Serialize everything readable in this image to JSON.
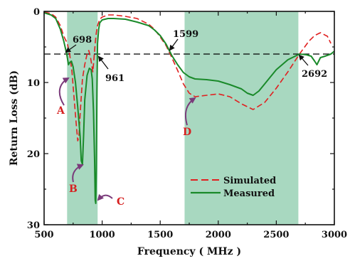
{
  "chart_data": {
    "type": "line",
    "xlabel": "Frequency ( MHz )",
    "ylabel": "Return Loss (dB)",
    "xlim": [
      500,
      3000
    ],
    "ylim": [
      0,
      30
    ],
    "y_inverted": true,
    "x_ticks": [
      500,
      1000,
      1500,
      2000,
      2500,
      3000
    ],
    "y_ticks": [
      0,
      10,
      20,
      30
    ],
    "grid": false,
    "legend_position": "lower-right",
    "reference_line": {
      "y": 6,
      "style": "dashed",
      "color": "#000000"
    },
    "bands": [
      {
        "from": 698,
        "to": 961,
        "color": "#a8d8c0"
      },
      {
        "from": 1710,
        "to": 2690,
        "color": "#a8d8c0"
      }
    ],
    "series": [
      {
        "name": "Simulated",
        "style": "dashed",
        "color": "#e02020",
        "x": [
          500,
          560,
          600,
          640,
          670,
          700,
          720,
          740,
          760,
          780,
          790,
          800,
          810,
          830,
          850,
          870,
          885,
          900,
          910,
          920,
          930,
          940,
          950,
          960,
          980,
          1000,
          1050,
          1100,
          1200,
          1300,
          1400,
          1450,
          1500,
          1550,
          1600,
          1650,
          1700,
          1750,
          1800,
          1900,
          2000,
          2100,
          2200,
          2300,
          2400,
          2500,
          2600,
          2700,
          2780,
          2830,
          2880,
          2940,
          2970
        ],
        "y": [
          0.1,
          0.3,
          0.8,
          2.0,
          3.5,
          4.5,
          6.0,
          8.5,
          12.5,
          16.5,
          18.2,
          17.5,
          14.5,
          9.5,
          7.5,
          6.0,
          5.5,
          6.5,
          7.5,
          8.5,
          6.5,
          4.5,
          3.0,
          2.0,
          1.1,
          0.8,
          0.5,
          0.5,
          0.7,
          1.0,
          1.8,
          2.5,
          3.6,
          4.8,
          6.5,
          8.3,
          10.2,
          11.5,
          12.0,
          11.8,
          11.6,
          12.0,
          13.0,
          13.8,
          12.8,
          10.8,
          8.5,
          6.0,
          4.2,
          3.4,
          3.0,
          3.5,
          4.5
        ]
      },
      {
        "name": "Measured",
        "style": "solid",
        "color": "#1a8a2a",
        "x": [
          500,
          560,
          600,
          640,
          670,
          695,
          710,
          720,
          735,
          750,
          770,
          790,
          810,
          820,
          830,
          840,
          850,
          870,
          890,
          905,
          915,
          925,
          935,
          940,
          945,
          950,
          955,
          960,
          970,
          980,
          1000,
          1050,
          1100,
          1200,
          1300,
          1400,
          1450,
          1500,
          1550,
          1600,
          1650,
          1700,
          1750,
          1800,
          1900,
          2000,
          2100,
          2200,
          2250,
          2300,
          2350,
          2400,
          2500,
          2600,
          2700,
          2760,
          2800,
          2830,
          2850,
          2880,
          2920,
          2970,
          3000
        ],
        "y": [
          0.2,
          0.5,
          1.0,
          2.5,
          4.2,
          6.0,
          7.5,
          7.2,
          7.0,
          7.8,
          10.0,
          13.5,
          17.5,
          21.0,
          21.5,
          17.5,
          12.5,
          9.0,
          8.0,
          8.2,
          9.5,
          14.0,
          21.0,
          26.5,
          27.0,
          22.0,
          11.0,
          4.5,
          2.5,
          1.6,
          1.2,
          1.0,
          1.0,
          1.1,
          1.5,
          2.0,
          2.6,
          3.4,
          4.6,
          6.2,
          7.5,
          8.6,
          9.2,
          9.5,
          9.6,
          9.8,
          10.3,
          10.9,
          11.5,
          11.8,
          11.2,
          10.2,
          8.2,
          6.8,
          6.0,
          6.1,
          6.3,
          7.0,
          7.5,
          6.5,
          6.3,
          6.0,
          5.6
        ]
      }
    ],
    "annotations": {
      "numbers": [
        {
          "text": "698",
          "x": 698,
          "y": 6
        },
        {
          "text": "961",
          "x": 961,
          "y": 6
        },
        {
          "text": "1599",
          "x": 1599,
          "y": 6
        },
        {
          "text": "2692",
          "x": 2692,
          "y": 6
        }
      ],
      "letters": [
        "A",
        "B",
        "C",
        "D"
      ]
    }
  }
}
